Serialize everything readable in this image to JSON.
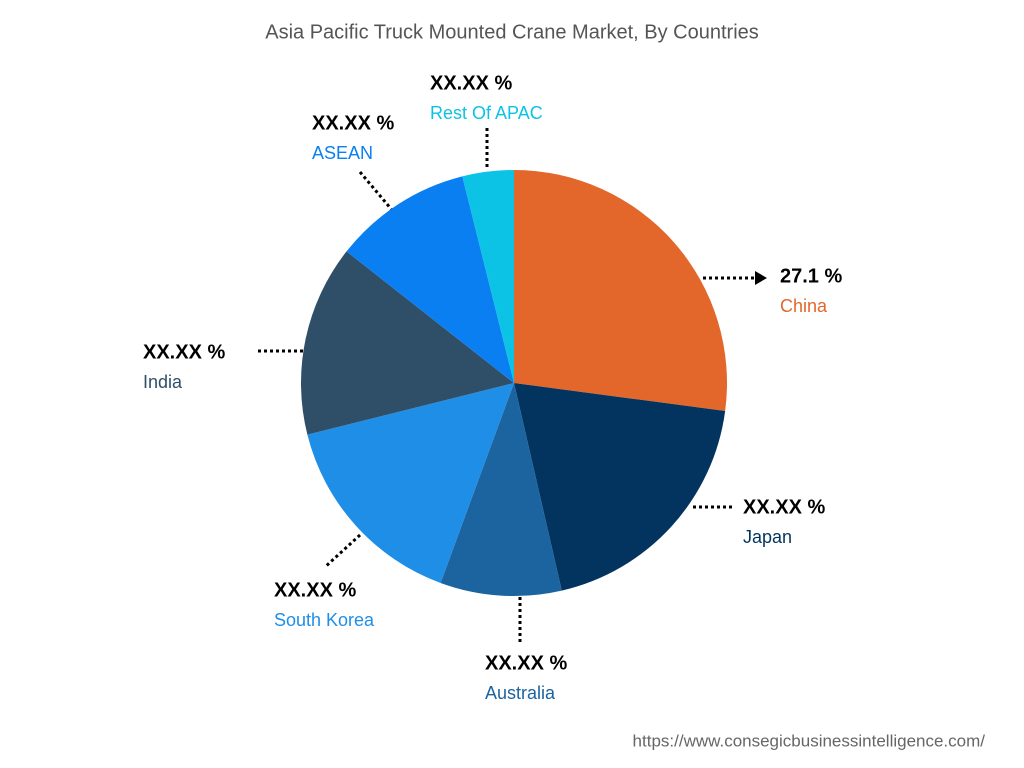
{
  "chart_data": {
    "type": "pie",
    "title": "Asia Pacific Truck Mounted Crane Market, By Countries",
    "categories": [
      "China",
      "Japan",
      "Australia",
      "South Korea",
      "India",
      "ASEAN",
      "Rest Of APAC"
    ],
    "values": [
      27.1,
      19.3,
      9.2,
      15.5,
      14.5,
      10.5,
      3.9
    ],
    "value_labels": [
      "27.1 %",
      "XX.XX %",
      "XX.XX %",
      "XX.XX %",
      "XX.XX %",
      "XX.XX %",
      "XX.XX %"
    ],
    "colors": [
      "#e3672a",
      "#02345f",
      "#1b64a0",
      "#1f8ee6",
      "#2f4f69",
      "#0a7ff2",
      "#0cc3e6"
    ]
  },
  "source": "https://www.consegicbusinessintelligence.com/"
}
